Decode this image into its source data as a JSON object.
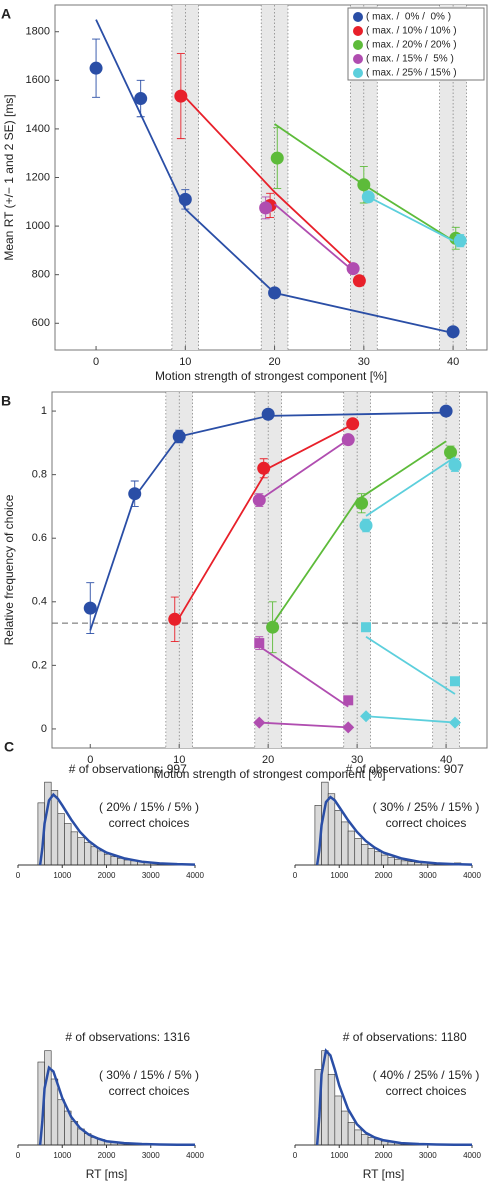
{
  "chart_data": [
    {
      "type": "scatter",
      "panel": "A",
      "ylabel": "Mean RT (+/− 1 and 2 SE) [ms]",
      "xlabel": "Motion strength of strongest component [%]",
      "xlim": [
        -4.6,
        43.8
      ],
      "ylim": [
        490,
        1910
      ],
      "xticks": [
        0,
        10,
        20,
        30,
        40
      ],
      "yticks": [
        600,
        800,
        1000,
        1200,
        1400,
        1600,
        1800
      ],
      "bands": [
        [
          8.5,
          11.5
        ],
        [
          18.5,
          21.5
        ],
        [
          28.5,
          31.5
        ],
        [
          38.5,
          41.5
        ]
      ],
      "legend": "upper right",
      "series": [
        {
          "name": "( max. /  0% /  0% )",
          "color": "#2a4ea6",
          "marker": "circle",
          "x": [
            0,
            5,
            10,
            20,
            40
          ],
          "values": [
            1650,
            1525,
            1110,
            725,
            565
          ],
          "errors": [
            120,
            75,
            40,
            15,
            10
          ],
          "fit_x": [
            0,
            10,
            20,
            40
          ],
          "fit_values": [
            1850,
            1070,
            725,
            560
          ]
        },
        {
          "name": "( max. / 10% / 10% )",
          "color": "#e8202a",
          "marker": "circle",
          "x": [
            9.5,
            19.5,
            29.5
          ],
          "values": [
            1535,
            1085,
            775
          ],
          "errors": [
            175,
            50,
            20
          ],
          "fit_x": [
            10,
            20,
            29
          ],
          "fit_values": [
            1530,
            1140,
            830
          ]
        },
        {
          "name": "( max. / 20% / 20% )",
          "color": "#5dbb3a",
          "marker": "circle",
          "x": [
            20.3,
            30,
            40.3
          ],
          "values": [
            1280,
            1170,
            950
          ],
          "errors": [
            125,
            75,
            45
          ],
          "fit_x": [
            20,
            30,
            40
          ],
          "fit_values": [
            1420,
            1170,
            940
          ]
        },
        {
          "name": "( max. / 15% /  5% )",
          "color": "#b04db0",
          "marker": "circle",
          "x": [
            19,
            28.8
          ],
          "values": [
            1075,
            825
          ],
          "errors": [
            45,
            20
          ],
          "fit_x": [
            20,
            28.5
          ],
          "fit_values": [
            1090,
            825
          ]
        },
        {
          "name": "( max. / 25% / 15% )",
          "color": "#5ccfdc",
          "marker": "circle",
          "x": [
            30.5,
            40.8
          ],
          "values": [
            1120,
            940
          ],
          "errors": [
            20,
            25
          ],
          "fit_x": [
            30,
            40
          ],
          "fit_values": [
            1130,
            940
          ]
        }
      ]
    },
    {
      "type": "scatter",
      "panel": "B",
      "ylabel": "Relative frequency of choice",
      "xlabel": "Motion strength of strongest component [%]",
      "xlim": [
        -4.3,
        44.6
      ],
      "ylim": [
        -0.06,
        1.06
      ],
      "xticks": [
        0,
        10,
        20,
        30,
        40
      ],
      "yticks": [
        0,
        0.2,
        0.4,
        0.6,
        0.8,
        1
      ],
      "bands": [
        [
          8.5,
          11.5
        ],
        [
          18.5,
          21.5
        ],
        [
          28.5,
          31.5
        ],
        [
          38.5,
          41.5
        ]
      ],
      "reference_line": 0.333,
      "series": [
        {
          "color": "#2a4ea6",
          "marker": "circle",
          "x": [
            0,
            5,
            10,
            20,
            40
          ],
          "values": [
            0.38,
            0.74,
            0.92,
            0.99,
            1.0
          ],
          "errors": [
            0.08,
            0.04,
            0.02,
            0.01,
            0.01
          ],
          "fit_x": [
            0,
            5,
            10,
            20,
            40
          ],
          "fit_values": [
            0.31,
            0.73,
            0.92,
            0.985,
            0.995
          ]
        },
        {
          "color": "#e8202a",
          "marker": "circle",
          "x": [
            9.5,
            19.5,
            29.5
          ],
          "values": [
            0.345,
            0.82,
            0.96
          ],
          "errors": [
            0.07,
            0.03,
            0.01
          ],
          "fit_x": [
            10,
            20,
            30
          ],
          "fit_values": [
            0.35,
            0.82,
            0.965
          ]
        },
        {
          "color": "#5dbb3a",
          "marker": "circle",
          "x": [
            20.5,
            30.5,
            40.5
          ],
          "values": [
            0.32,
            0.71,
            0.87
          ],
          "errors": [
            0.08,
            0.03,
            0.02
          ],
          "fit_x": [
            20,
            30,
            40
          ],
          "fit_values": [
            0.31,
            0.72,
            0.905
          ]
        },
        {
          "color": "#b04db0",
          "marker": "circle",
          "x": [
            19,
            29
          ],
          "values": [
            0.72,
            0.91
          ],
          "errors": [
            0.02,
            0.01
          ],
          "fit_x": [
            19,
            29
          ],
          "fit_values": [
            0.72,
            0.91
          ]
        },
        {
          "color": "#5ccfdc",
          "marker": "circle",
          "x": [
            31,
            41
          ],
          "values": [
            0.64,
            0.83
          ],
          "errors": [
            0.02,
            0.02
          ],
          "fit_x": [
            31,
            41
          ],
          "fit_values": [
            0.67,
            0.855
          ]
        },
        {
          "color": "#b04db0",
          "marker": "square",
          "x": [
            19,
            29
          ],
          "values": [
            0.27,
            0.09
          ],
          "errors": [
            0.02,
            0.01
          ],
          "fit_x": [
            19,
            29
          ],
          "fit_values": [
            0.26,
            0.07
          ]
        },
        {
          "color": "#5ccfdc",
          "marker": "square",
          "x": [
            31,
            41
          ],
          "values": [
            0.32,
            0.15
          ],
          "errors": [
            0.01,
            0.01
          ],
          "fit_x": [
            31,
            41
          ],
          "fit_values": [
            0.29,
            0.11
          ]
        },
        {
          "color": "#b04db0",
          "marker": "diamond",
          "x": [
            19,
            29
          ],
          "values": [
            0.02,
            0.005
          ],
          "errors": [
            0.005,
            0.005
          ],
          "fit_x": [
            19,
            29
          ],
          "fit_values": [
            0.02,
            0.005
          ]
        },
        {
          "color": "#5ccfdc",
          "marker": "diamond",
          "x": [
            31,
            41
          ],
          "values": [
            0.04,
            0.02
          ],
          "errors": [
            0.005,
            0.005
          ],
          "fit_x": [
            31,
            41
          ],
          "fit_values": [
            0.04,
            0.02
          ]
        }
      ]
    },
    {
      "type": "histogram",
      "panel": "C",
      "title": "# of observations: 997",
      "annotation": [
        "( 20% / 15% / 5% )",
        "correct choices"
      ],
      "color": "#d9d9d9",
      "xlim": [
        0,
        4000
      ],
      "xticks": [
        0,
        1000,
        2000,
        3000,
        4000
      ],
      "ylim": [
        0,
        105
      ],
      "bins": [
        450,
        600,
        750,
        900,
        1050,
        1200,
        1350,
        1500,
        1650,
        1800,
        1950,
        2100,
        2250,
        2400,
        2550,
        2700,
        2850,
        3000,
        3150,
        3300,
        3450,
        3600,
        3750,
        3900
      ],
      "counts": [
        75,
        100,
        90,
        62,
        50,
        40,
        33,
        27,
        22,
        17,
        13,
        10,
        8,
        6,
        5,
        4,
        3,
        2.5,
        2,
        1.5,
        1,
        1,
        0.8
      ],
      "curve": {
        "color": "#2a4ea6",
        "x": [
          500,
          550,
          600,
          700,
          800,
          900,
          1000,
          1200,
          1400,
          1600,
          1800,
          2000,
          2400,
          2800,
          3200,
          3600,
          4000
        ],
        "values": [
          0,
          20,
          50,
          78,
          85,
          80,
          72,
          55,
          40,
          29,
          21,
          15,
          8,
          4,
          2,
          1,
          0.5
        ]
      }
    },
    {
      "type": "histogram",
      "title": "# of observations: 907",
      "annotation": [
        "( 30% / 25% / 15% )",
        "correct choices"
      ],
      "color": "#d9d9d9",
      "xlim": [
        0,
        4000
      ],
      "xticks": [
        0,
        1000,
        2000,
        3000,
        4000
      ],
      "ylim": [
        0,
        105
      ],
      "bins": [
        450,
        600,
        750,
        900,
        1050,
        1200,
        1350,
        1500,
        1650,
        1800,
        1950,
        2100,
        2250,
        2400,
        2550,
        2700,
        2850,
        3000,
        3150,
        3300,
        3450,
        3600,
        3750,
        3900
      ],
      "counts": [
        72,
        100,
        86,
        66,
        52,
        41,
        32,
        25,
        20,
        16,
        12,
        9,
        7,
        5,
        4,
        3,
        2.5,
        2,
        1.5,
        1.2,
        1,
        2.5,
        0.5
      ],
      "curve": {
        "color": "#2a4ea6",
        "x": [
          500,
          550,
          600,
          700,
          800,
          900,
          1000,
          1200,
          1400,
          1600,
          1800,
          2000,
          2400,
          2800,
          3200,
          3600,
          4000
        ],
        "values": [
          0,
          18,
          48,
          76,
          82,
          78,
          70,
          54,
          40,
          29,
          21,
          15,
          8,
          4,
          2,
          1,
          0.5
        ]
      }
    },
    {
      "type": "histogram",
      "title": "# of observations: 1316",
      "annotation": [
        "( 30% / 15% / 5% )",
        "correct choices"
      ],
      "xlabel": "RT [ms]",
      "color": "#d9d9d9",
      "xlim": [
        0,
        4000
      ],
      "xticks": [
        0,
        1000,
        2000,
        3000,
        4000
      ],
      "ylim": [
        0,
        105
      ],
      "bins": [
        450,
        600,
        750,
        900,
        1050,
        1200,
        1350,
        1500,
        1650,
        1800,
        1950,
        2100,
        2250,
        2400,
        2550,
        2700,
        2850,
        3000,
        3150,
        3300,
        3450,
        3600,
        3750,
        3900
      ],
      "counts": [
        88,
        100,
        70,
        48,
        36,
        25,
        17,
        12,
        8,
        6,
        4,
        3,
        2.5,
        2,
        1.5,
        1,
        1,
        0.8,
        0.6,
        0.5,
        0.4,
        0.3,
        0.3
      ],
      "curve": {
        "color": "#2a4ea6",
        "x": [
          500,
          550,
          600,
          700,
          800,
          900,
          1000,
          1200,
          1400,
          1600,
          1800,
          2000,
          2400,
          2800,
          3200,
          3600,
          4000
        ],
        "values": [
          0,
          25,
          60,
          82,
          78,
          64,
          50,
          30,
          18,
          11,
          7,
          4,
          2,
          1,
          0.5,
          0.3,
          0.2
        ]
      }
    },
    {
      "type": "histogram",
      "title": "# of observations: 1180",
      "annotation": [
        "( 40% / 25% / 15% )",
        "correct choices"
      ],
      "xlabel": "RT [ms]",
      "color": "#d9d9d9",
      "xlim": [
        0,
        4000
      ],
      "xticks": [
        0,
        1000,
        2000,
        3000,
        4000
      ],
      "ylim": [
        0,
        105
      ],
      "bins": [
        450,
        600,
        750,
        900,
        1050,
        1200,
        1350,
        1500,
        1650,
        1800,
        1950,
        2100,
        2250,
        2400,
        2550,
        2700,
        2850,
        3000,
        3150,
        3300,
        3450,
        3600,
        3750,
        3900
      ],
      "counts": [
        80,
        100,
        75,
        52,
        36,
        24,
        16,
        11,
        8,
        6,
        4,
        3,
        2.5,
        2,
        1.5,
        1,
        1,
        0.8,
        1,
        0.5,
        0.4,
        0.3,
        0.3
      ],
      "curve": {
        "color": "#2a4ea6",
        "x": [
          500,
          550,
          600,
          700,
          800,
          900,
          1000,
          1200,
          1400,
          1600,
          1800,
          2000,
          2400,
          2800,
          3200,
          3600,
          4000
        ],
        "values": [
          0,
          30,
          75,
          100,
          95,
          80,
          63,
          38,
          22,
          13,
          8,
          5,
          2,
          1,
          0.5,
          0.3,
          0.2
        ]
      }
    }
  ]
}
